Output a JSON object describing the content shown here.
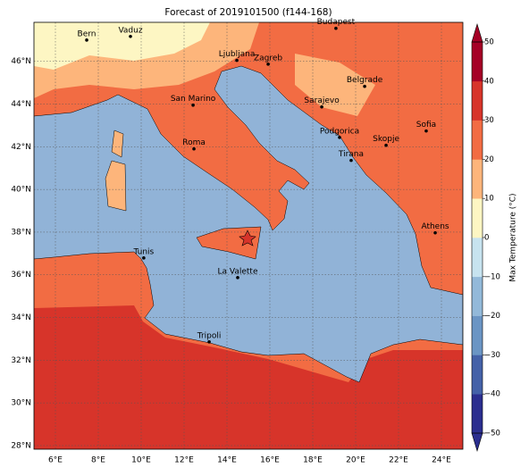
{
  "map": {
    "title": "Forecast of 2019101500 (f144-168)",
    "lonlim": [
      5,
      25
    ],
    "latlim": [
      27.83,
      47.83
    ],
    "xticks": [
      {
        "value": 6,
        "label": "6°E"
      },
      {
        "value": 8,
        "label": "8°E"
      },
      {
        "value": 10,
        "label": "10°E"
      },
      {
        "value": 12,
        "label": "12°E"
      },
      {
        "value": 14,
        "label": "14°E"
      },
      {
        "value": 16,
        "label": "16°E"
      },
      {
        "value": 18,
        "label": "18°E"
      },
      {
        "value": 20,
        "label": "20°E"
      },
      {
        "value": 22,
        "label": "22°E"
      },
      {
        "value": 24,
        "label": "24°E"
      }
    ],
    "yticks": [
      {
        "value": 28,
        "label": "28°N"
      },
      {
        "value": 30,
        "label": "30°N"
      },
      {
        "value": 32,
        "label": "32°N"
      },
      {
        "value": 34,
        "label": "34°N"
      },
      {
        "value": 36,
        "label": "36°N"
      },
      {
        "value": 38,
        "label": "38°N"
      },
      {
        "value": 40,
        "label": "40°N"
      },
      {
        "value": 42,
        "label": "42°N"
      },
      {
        "value": 44,
        "label": "44°N"
      },
      {
        "value": 46,
        "label": "46°N"
      }
    ],
    "cities": [
      {
        "name": "Bern",
        "lon": 7.46,
        "lat": 47.0
      },
      {
        "name": "Vaduz",
        "lon": 9.5,
        "lat": 47.17
      },
      {
        "name": "Budapest",
        "lon": 19.08,
        "lat": 47.55
      },
      {
        "name": "Ljubljana",
        "lon": 14.46,
        "lat": 46.05
      },
      {
        "name": "Zagreb",
        "lon": 15.92,
        "lat": 45.87
      },
      {
        "name": "San Marino",
        "lon": 12.42,
        "lat": 43.95
      },
      {
        "name": "Belgrade",
        "lon": 20.42,
        "lat": 44.83
      },
      {
        "name": "Sarajevo",
        "lon": 18.42,
        "lat": 43.87
      },
      {
        "name": "Sofia",
        "lon": 23.29,
        "lat": 42.74
      },
      {
        "name": "Roma",
        "lon": 12.46,
        "lat": 41.9
      },
      {
        "name": "Podgorica",
        "lon": 19.25,
        "lat": 42.44
      },
      {
        "name": "Skopje",
        "lon": 21.42,
        "lat": 42.07
      },
      {
        "name": "Tirana",
        "lon": 19.79,
        "lat": 41.36
      },
      {
        "name": "Athens",
        "lon": 23.71,
        "lat": 37.97
      },
      {
        "name": "Tunis",
        "lon": 10.12,
        "lat": 36.79
      },
      {
        "name": "La Valette",
        "lon": 14.5,
        "lat": 35.87
      },
      {
        "name": "Tripoli",
        "lon": 13.17,
        "lat": 32.86
      }
    ],
    "colorbar": {
      "label": "Max Temperature (°C)",
      "lim": [
        -50,
        50
      ],
      "ticks": [
        {
          "value": -50,
          "label": "−50"
        },
        {
          "value": -40,
          "label": "−40"
        },
        {
          "value": -30,
          "label": "−30"
        },
        {
          "value": -20,
          "label": "−20"
        },
        {
          "value": -10,
          "label": "−10"
        },
        0,
        10,
        20,
        30,
        40,
        50
      ],
      "colors": [
        "#2b2e8f",
        "#4461a8",
        "#6b95c4",
        "#93b9d9",
        "#c7e3ef",
        "#fdf6c3",
        "#fdb57b",
        "#f26c43",
        "#d7342a",
        "#a50026"
      ]
    }
  }
}
